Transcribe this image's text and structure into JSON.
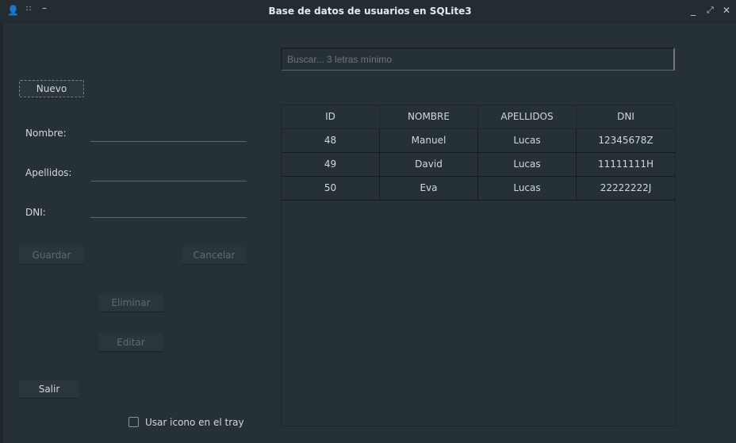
{
  "window": {
    "title": "Base de datos de usuarios en SQLite3",
    "icons": [
      "user-icon",
      "grid-icon",
      "minimize-icon",
      "restore-icon",
      "close-icon"
    ]
  },
  "form": {
    "nuevo": "Nuevo",
    "nombre_label": "Nombre:",
    "apellidos_label": "Apellidos:",
    "dni_label": "DNI:",
    "nombre": "",
    "apellidos": "",
    "dni": "",
    "guardar": "Guardar",
    "cancelar": "Cancelar",
    "eliminar": "Eliminar",
    "editar": "Editar",
    "salir": "Salir",
    "tray_label": "Usar icono en el tray",
    "tray_checked": false
  },
  "search": {
    "placeholder": "Buscar... 3 letras mínimo",
    "value": ""
  },
  "table": {
    "headers": [
      "ID",
      "NOMBRE",
      "APELLIDOS",
      "DNI"
    ],
    "rows": [
      [
        "48",
        "Manuel",
        "Lucas",
        "12345678Z"
      ],
      [
        "49",
        "David",
        "Lucas",
        "11111111H"
      ],
      [
        "50",
        "Eva",
        "Lucas",
        "22222222J"
      ]
    ]
  }
}
